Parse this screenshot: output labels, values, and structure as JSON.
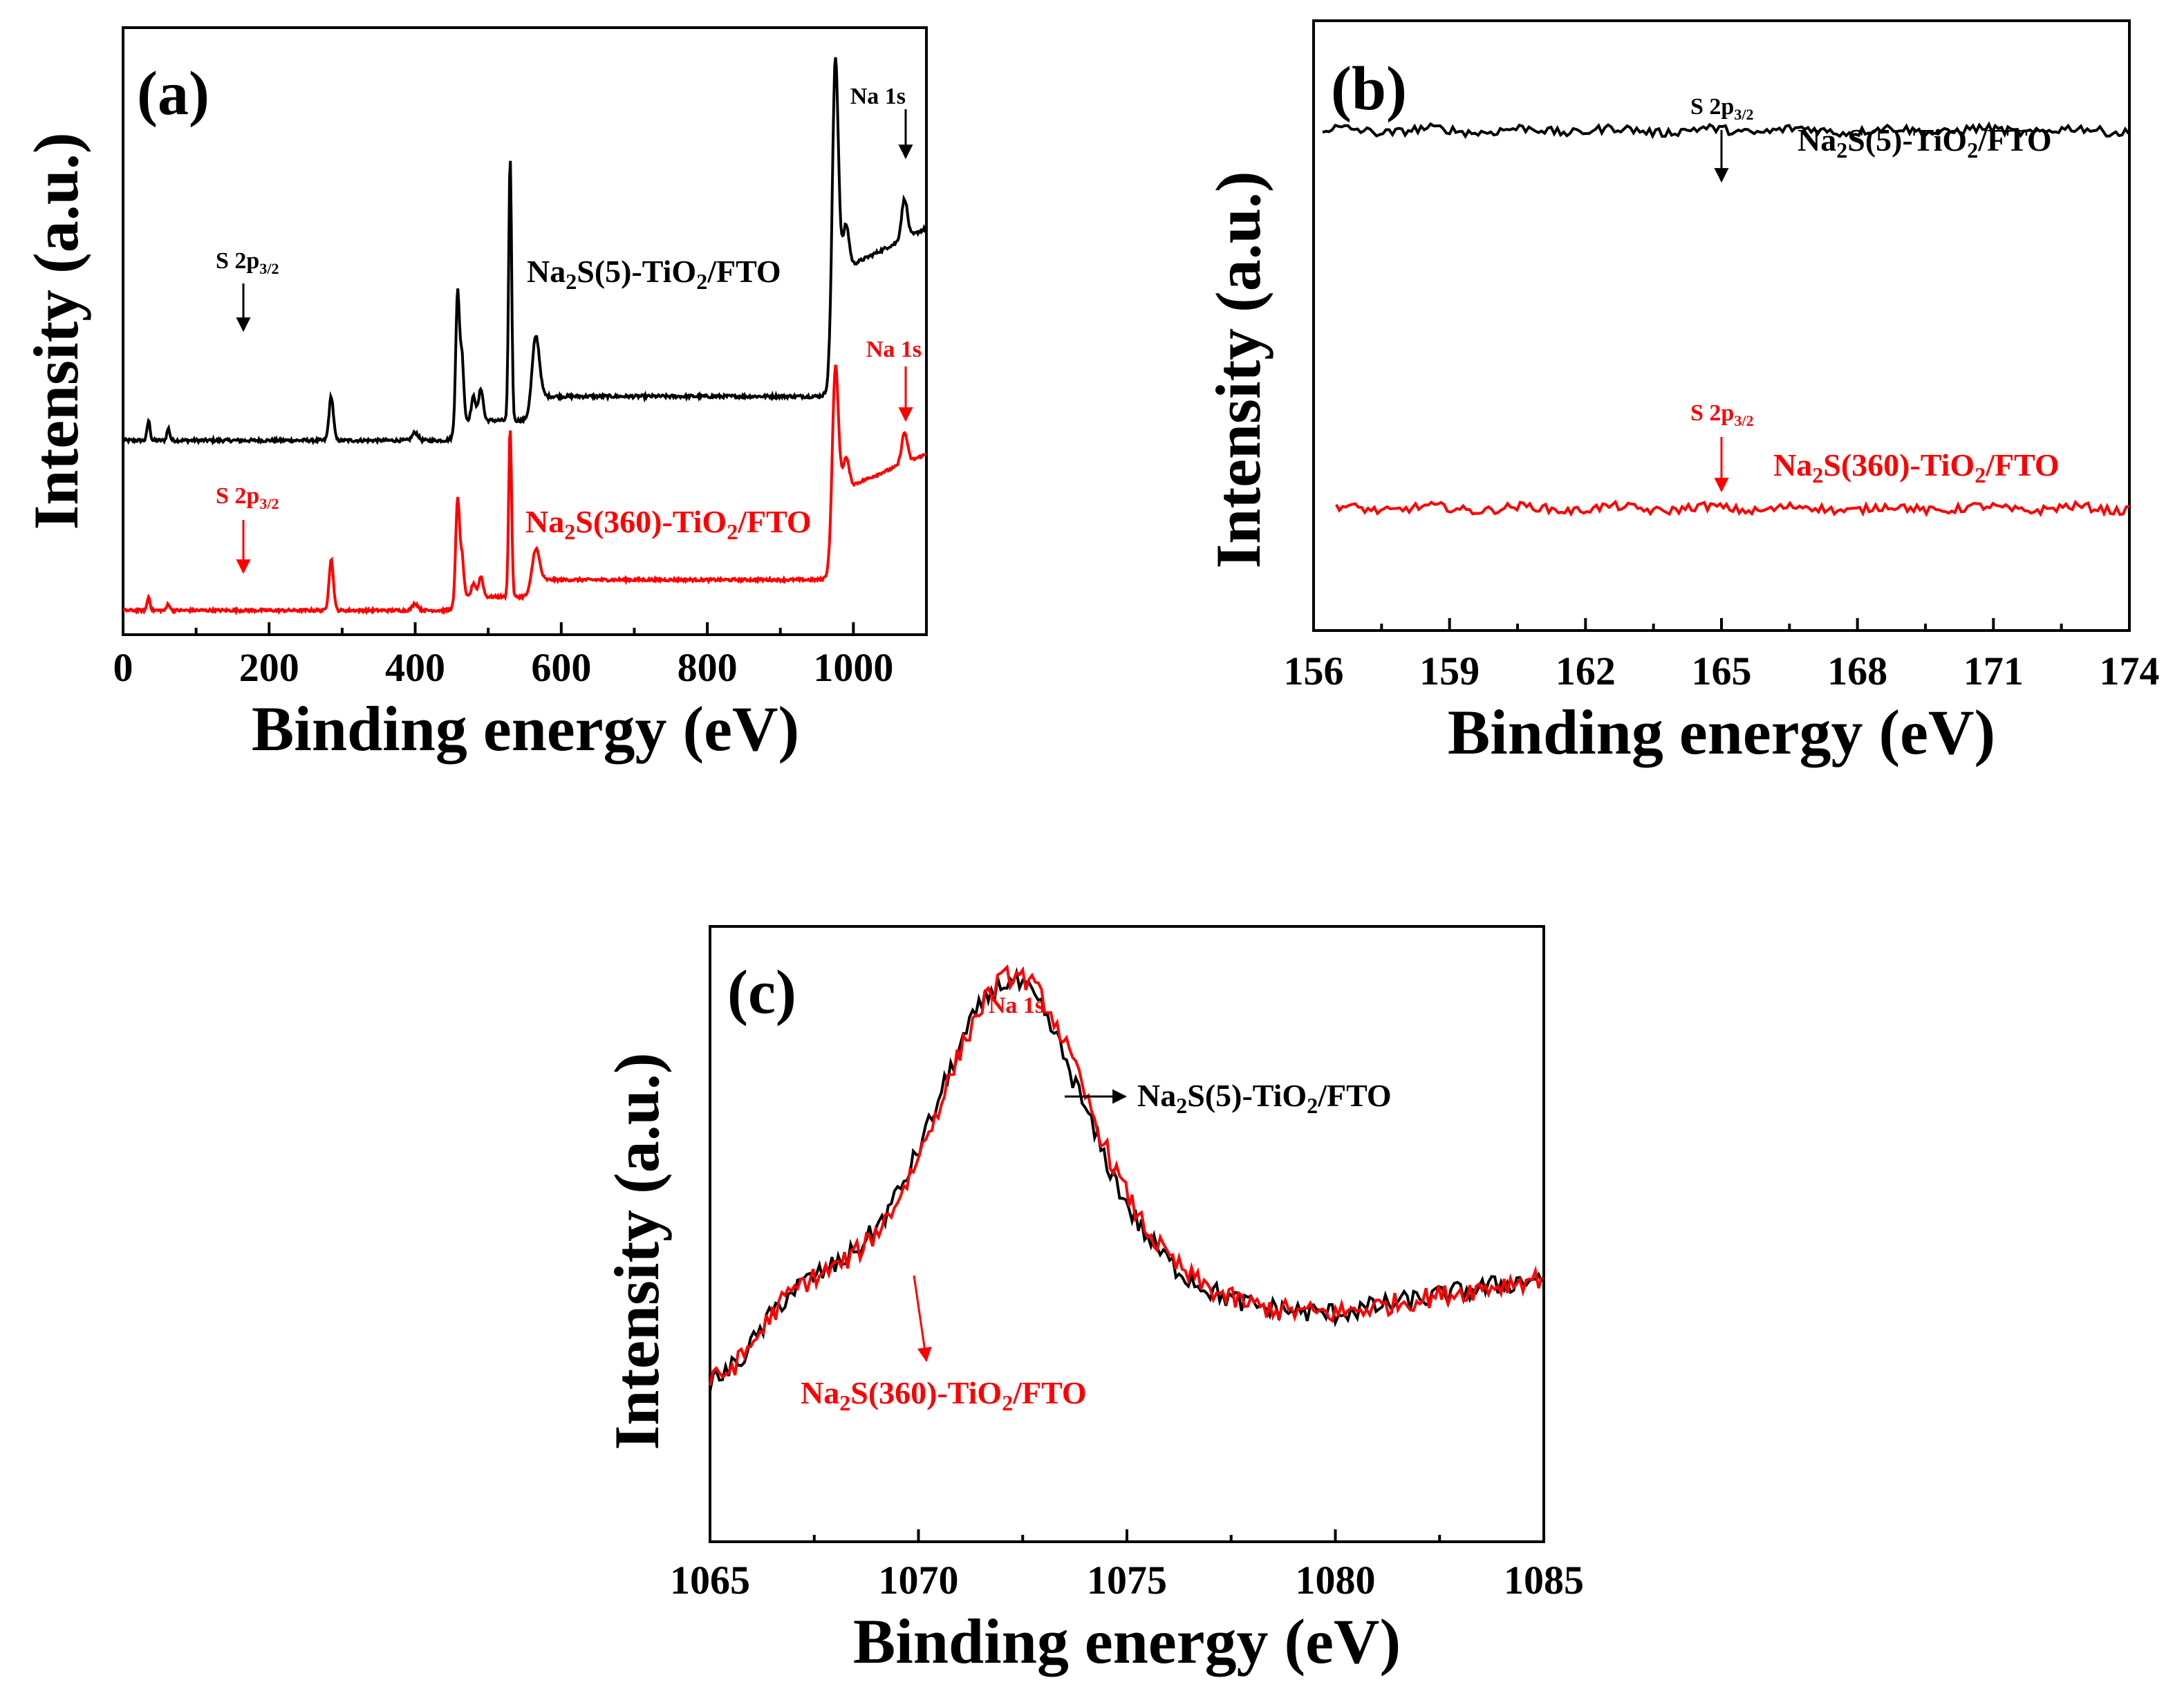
{
  "chart_data": [
    {
      "type": "line",
      "panel": "(a)",
      "xlabel": "Binding energy (eV)",
      "ylabel": "Intensity (a.u.)",
      "xlim": [
        0,
        1100
      ],
      "xticks": [
        0,
        200,
        400,
        600,
        800,
        1000
      ],
      "xtick_labels": [
        "0",
        "200",
        "400",
        "600",
        "800",
        "1000"
      ],
      "y_ticks_shown": false,
      "series": [
        {
          "name": "Na2S(5)-TiO2/FTO",
          "color": "#000000",
          "baseline": 0.3,
          "peaks": [
            [
              35,
              0.05,
              2
            ],
            [
              62,
              0.03,
              2
            ],
            [
              285,
              0.11,
              3
            ],
            [
              400,
              0.02,
              4
            ],
            [
              458,
              0.33,
              2.5
            ],
            [
              464,
              0.16,
              2.5
            ],
            [
              480,
              0.06,
              3
            ],
            [
              490,
              0.08,
              3
            ],
            [
              530,
              0.66,
              2
            ],
            [
              565,
              0.16,
              5
            ],
            [
              975,
              0.6,
              4
            ],
            [
              990,
              0.1,
              4
            ],
            [
              1070,
              0.1,
              4
            ]
          ],
          "steps": [
            [
              455,
              0.05
            ],
            [
              560,
              0.06
            ],
            [
              972,
              0.33
            ]
          ]
        },
        {
          "name": "Na2S(360)-TiO2/FTO",
          "color": "#ff0000",
          "baseline": 0.3,
          "peaks": [
            [
              35,
              0.04,
              2
            ],
            [
              62,
              0.02,
              2
            ],
            [
              285,
              0.15,
              3
            ],
            [
              400,
              0.02,
              4
            ],
            [
              458,
              0.3,
              2.5
            ],
            [
              464,
              0.12,
              2.5
            ],
            [
              480,
              0.04,
              3
            ],
            [
              490,
              0.06,
              3
            ],
            [
              530,
              0.5,
              2
            ],
            [
              565,
              0.1,
              5
            ],
            [
              975,
              0.42,
              4
            ],
            [
              990,
              0.08,
              4
            ],
            [
              1070,
              0.09,
              4
            ]
          ],
          "steps": [
            [
              455,
              0.04
            ],
            [
              560,
              0.05
            ],
            [
              972,
              0.28
            ]
          ]
        }
      ],
      "annotations": [
        {
          "text": "Na 1s",
          "x": 1070,
          "series": "Na2S(5)-TiO2/FTO",
          "color": "#000000"
        },
        {
          "text": "S 2p3/2",
          "x": 165,
          "series": "Na2S(5)-TiO2/FTO",
          "color": "#000000"
        },
        {
          "text": "Na 1s",
          "x": 1070,
          "series": "Na2S(360)-TiO2/FTO",
          "color": "#ff0000"
        },
        {
          "text": "S 2p3/2",
          "x": 165,
          "series": "Na2S(360)-TiO2/FTO",
          "color": "#ff0000"
        }
      ]
    },
    {
      "type": "line",
      "panel": "(b)",
      "xlabel": "Binding energy (eV)",
      "ylabel": "Intensity (a.u.)",
      "xlim": [
        156,
        174
      ],
      "xticks": [
        156,
        159,
        162,
        165,
        168,
        171,
        174
      ],
      "xtick_labels": [
        "156",
        "159",
        "162",
        "165",
        "168",
        "171",
        "174"
      ],
      "y_ticks_shown": false,
      "series": [
        {
          "name": "Na2S(5)-TiO2/FTO",
          "color": "#000000",
          "x_range": [
            156.2,
            174
          ],
          "level": 0.82
        },
        {
          "name": "Na2S(360)-TiO2/FTO",
          "color": "#ff0000",
          "x_range": [
            156.5,
            174
          ],
          "level": 0.2
        }
      ],
      "annotations": [
        {
          "text": "S 2p3/2",
          "x": 165,
          "series": "Na2S(5)-TiO2/FTO",
          "color": "#000000"
        },
        {
          "text": "S 2p3/2",
          "x": 165,
          "series": "Na2S(360)-TiO2/FTO",
          "color": "#ff0000"
        }
      ]
    },
    {
      "type": "line",
      "panel": "(c)",
      "xlabel": "Binding energy (eV)",
      "ylabel": "Intensity (a.u.)",
      "xlim": [
        1065,
        1085
      ],
      "xticks": [
        1065,
        1070,
        1075,
        1080,
        1085
      ],
      "xtick_labels": [
        "1065",
        "1070",
        "1075",
        "1080",
        "1085"
      ],
      "y_ticks_shown": false,
      "series": [
        {
          "name": "Na2S(5)-TiO2/FTO",
          "color": "#000000",
          "peak_x": 1072.2,
          "peak_y": 0.9
        },
        {
          "name": "Na2S(360)-TiO2/FTO",
          "color": "#ff0000",
          "peak_x": 1072.3,
          "peak_y": 0.91
        }
      ],
      "annotations": [
        {
          "text": "Na 1s",
          "x": 1072.2,
          "color": "#ff0000"
        }
      ]
    }
  ],
  "labels": {
    "a": {
      "letter": "(a)",
      "xlabel": "Binding energy (eV)",
      "ylabel": "Intensity (a.u.)",
      "ticks": [
        "0",
        "200",
        "400",
        "600",
        "800",
        "1000"
      ],
      "na1s_black": "Na 1s",
      "na1s_red": "Na 1s",
      "s2p_main": "S 2p",
      "s2p_sub": "3/2",
      "series1_pre": "Na",
      "series1_sub": "2",
      "series1_mid": "S(5)-TiO",
      "series1_sub2": "2",
      "series1_post": "/FTO",
      "series2_pre": "Na",
      "series2_sub": "2",
      "series2_mid": "S(360)-TiO",
      "series2_sub2": "2",
      "series2_post": "/FTO"
    },
    "b": {
      "letter": "(b)",
      "xlabel": "Binding energy (eV)",
      "ylabel": "Intensity (a.u.)",
      "ticks": [
        "156",
        "159",
        "162",
        "165",
        "168",
        "171",
        "174"
      ],
      "s2p_main": "S 2p",
      "s2p_sub": "3/2",
      "series1_pre": "Na",
      "series1_sub": "2",
      "series1_mid": "S(5)-TiO",
      "series1_sub2": "2",
      "series1_post": "/FTO",
      "series2_pre": "Na",
      "series2_sub": "2",
      "series2_mid": "S(360)-TiO",
      "series2_sub2": "2",
      "series2_post": "/FTO"
    },
    "c": {
      "letter": "(c)",
      "xlabel": "Binding energy (eV)",
      "ylabel": "Intensity (a.u.)",
      "ticks": [
        "1065",
        "1070",
        "1075",
        "1080",
        "1085"
      ],
      "na1s": "Na 1s",
      "series1_pre": "Na",
      "series1_sub": "2",
      "series1_mid": "S(5)-TiO",
      "series1_sub2": "2",
      "series1_post": "/FTO",
      "series2_pre": "Na",
      "series2_sub": "2",
      "series2_mid": "S(360)-TiO",
      "series2_sub2": "2",
      "series2_post": "/FTO"
    }
  }
}
